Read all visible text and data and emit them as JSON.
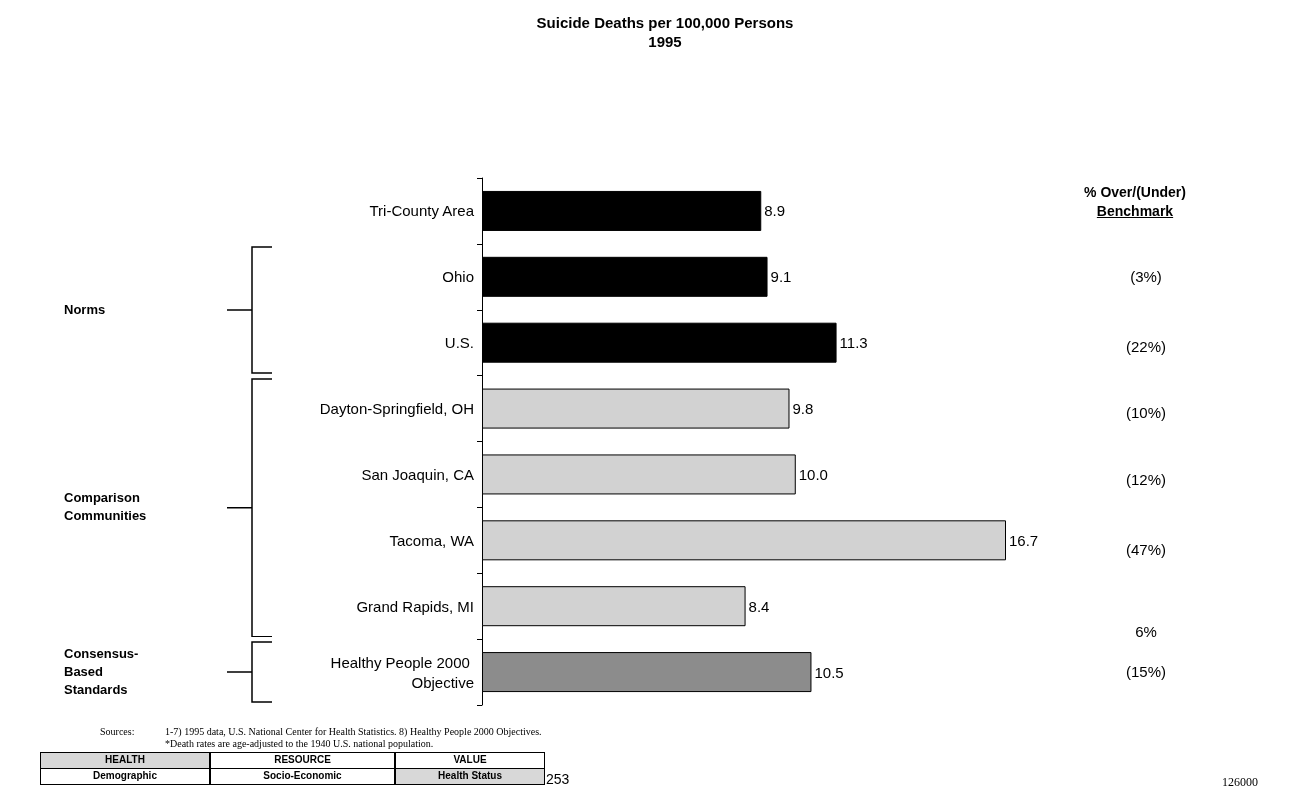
{
  "chart_data": {
    "type": "bar",
    "orientation": "horizontal",
    "title": "Suicide Deaths per 100,000 Persons",
    "subtitle": "1995",
    "categories": [
      "Tri-County Area",
      "Ohio",
      "U.S.",
      "Dayton-Springfield, OH",
      "San Joaquin, CA",
      "Tacoma, WA",
      "Grand Rapids, MI",
      "Healthy People 2000 Objective"
    ],
    "values": [
      8.9,
      9.1,
      11.3,
      9.8,
      10.0,
      16.7,
      8.4,
      10.5
    ],
    "value_labels": [
      "8.9",
      "9.1",
      "11.3",
      "9.8",
      "10.0",
      "16.7",
      "8.4",
      "10.5"
    ],
    "colors": [
      "#000000",
      "#000000",
      "#000000",
      "#d2d2d2",
      "#d2d2d2",
      "#d2d2d2",
      "#d2d2d2",
      "#8c8c8c"
    ],
    "tick_labels": "y",
    "annotations": [
      "% Over/(Under)",
      "Benchmark",
      "Norms",
      "Comparison Communities",
      "Consensus-Based Standards",
      "Sources:",
      "1-7) 1995 data, U.S. National Center for Health Statistics. 8) Healthy People 2000 Objectives.",
      "*Death rates are age-adjusted to the 1940 U.S. national population.",
      "HEALTH",
      "RESOURCE",
      "VALUE",
      "Demographic",
      "Socio-Economic",
      "Health Status",
      "253",
      "126000",
      "(3%)",
      "(22%)",
      "(10%)",
      "(12%)",
      "(47%)",
      "6%",
      "(15%)"
    ]
  }
}
